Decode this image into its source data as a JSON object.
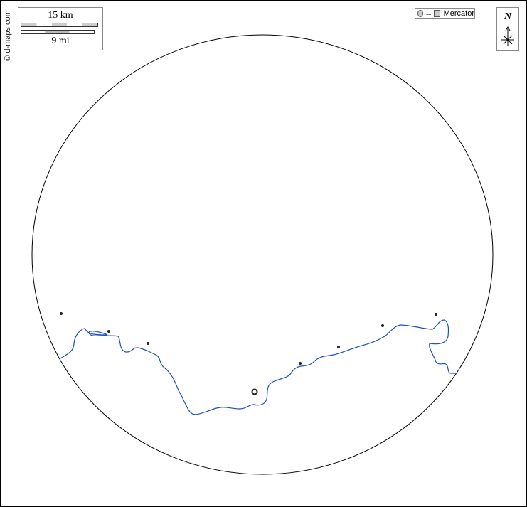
{
  "credit": "© d-maps.com",
  "scale": {
    "km_label": "15 km",
    "mi_label": "9 mi"
  },
  "projection": {
    "label": "Mercator",
    "arrow": "→"
  },
  "north": {
    "label": "N"
  },
  "colors": {
    "coastline": "#1a4fc4",
    "frame": "#000000",
    "points": "#222222"
  }
}
